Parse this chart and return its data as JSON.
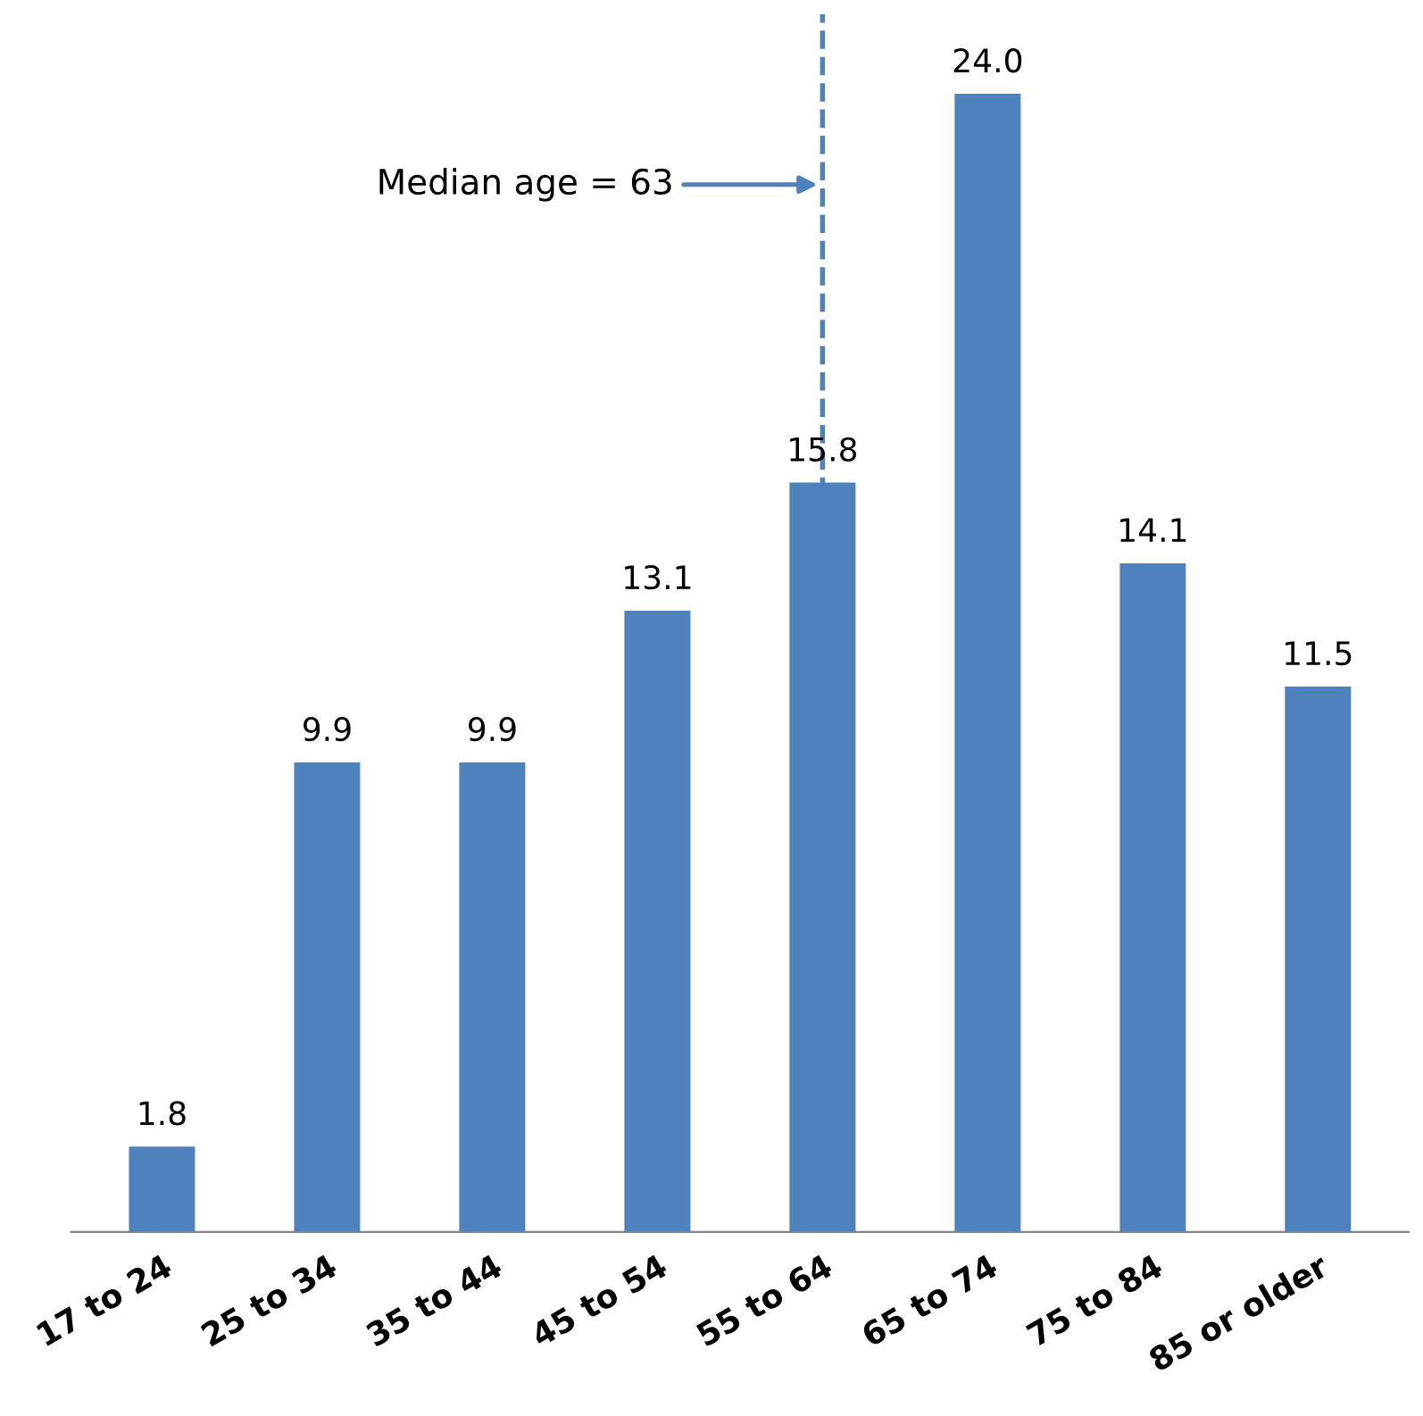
{
  "chart_data": {
    "type": "bar",
    "categories": [
      "17 to 24",
      "25 to 34",
      "35 to 44",
      "45 to 54",
      "55 to 64",
      "65 to 74",
      "75 to 84",
      "85 or older"
    ],
    "values": [
      1.8,
      9.9,
      9.9,
      13.1,
      15.8,
      24.0,
      14.1,
      11.5
    ],
    "value_labels": [
      "1.8",
      "9.9",
      "9.9",
      "13.1",
      "15.8",
      "24.0",
      "14.1",
      "11.5"
    ],
    "color": "#4f81bd",
    "grid": false,
    "legend": false,
    "ref_lines": [
      {
        "axis": "x",
        "value": "55 to 64",
        "label": "Median age = 63",
        "color": "#4f81bd",
        "line_style": "dashed"
      }
    ]
  }
}
